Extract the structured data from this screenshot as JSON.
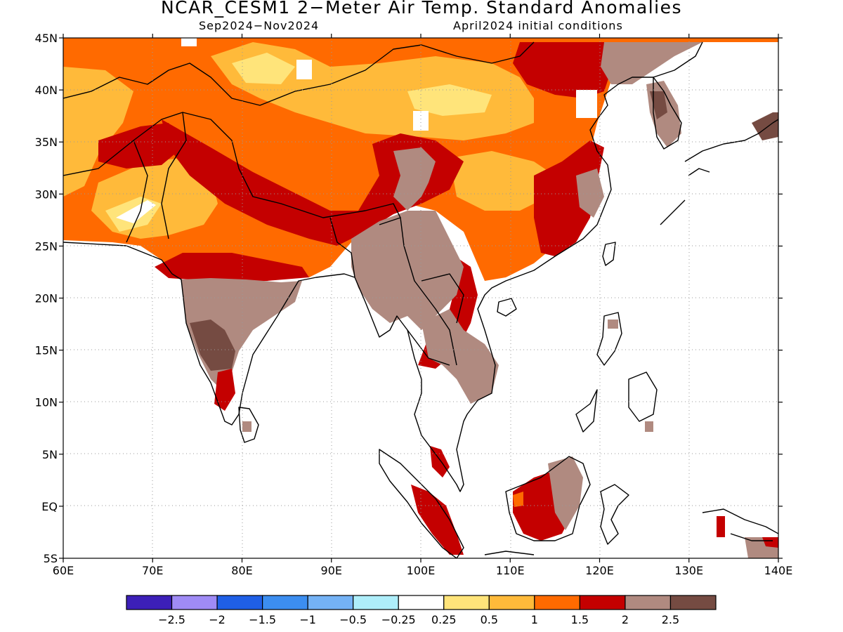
{
  "header": {
    "title": "NCAR_CESM1 2−Meter Air Temp. Standard Anomalies",
    "period": "Sep2024−Nov2024",
    "init": "April2024 initial conditions"
  },
  "axes": {
    "lat_labels": [
      {
        "lat": 45,
        "text": "45N"
      },
      {
        "lat": 40,
        "text": "40N"
      },
      {
        "lat": 35,
        "text": "35N"
      },
      {
        "lat": 30,
        "text": "30N"
      },
      {
        "lat": 25,
        "text": "25N"
      },
      {
        "lat": 20,
        "text": "20N"
      },
      {
        "lat": 15,
        "text": "15N"
      },
      {
        "lat": 10,
        "text": "10N"
      },
      {
        "lat": 5,
        "text": "5N"
      },
      {
        "lat": 0,
        "text": "EQ"
      },
      {
        "lat": -5,
        "text": "5S"
      }
    ],
    "lon_labels": [
      {
        "lon": 60,
        "text": "60E"
      },
      {
        "lon": 70,
        "text": "70E"
      },
      {
        "lon": 80,
        "text": "80E"
      },
      {
        "lon": 90,
        "text": "90E"
      },
      {
        "lon": 100,
        "text": "100E"
      },
      {
        "lon": 110,
        "text": "110E"
      },
      {
        "lon": 120,
        "text": "120E"
      },
      {
        "lon": 130,
        "text": "130E"
      },
      {
        "lon": 140,
        "text": "140E"
      }
    ],
    "lon_range": [
      60,
      140
    ],
    "lat_range": [
      -5,
      45
    ]
  },
  "legend": {
    "colors": [
      "#3c1fb8",
      "#9f8bf5",
      "#1f5fe6",
      "#3c8ef0",
      "#74b2f5",
      "#aeeefa",
      "#ffffff",
      "#ffe47a",
      "#ffba3a",
      "#ff6a00",
      "#c40000",
      "#b08a80",
      "#754b42"
    ],
    "labels": [
      "−2.5",
      "−2",
      "−1.5",
      "−1",
      "−0.5",
      "−0.25",
      "0.25",
      "0.5",
      "1",
      "1.5",
      "2",
      "2.5"
    ]
  }
}
